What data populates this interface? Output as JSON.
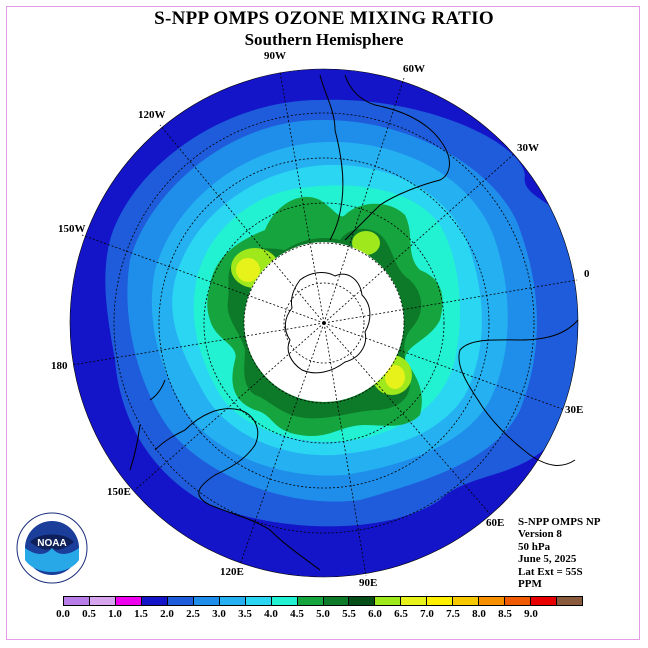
{
  "title": "S-NPP OMPS OZONE MIXING RATIO",
  "subtitle": "Southern Hemisphere",
  "longitude_labels": [
    "90W",
    "60W",
    "30W",
    "0",
    "30E",
    "60E",
    "90E",
    "120E",
    "150E",
    "180",
    "150W",
    "120W"
  ],
  "info": {
    "instrument": "S-NPP OMPS NP",
    "version": "Version 8",
    "level": "50 hPa",
    "date": "June 5, 2025",
    "lat_ext": "Lat Ext = 55S",
    "units": "PPM"
  },
  "logo_text": "NOAA",
  "colorbar": {
    "ticks": [
      "0.0",
      "0.5",
      "1.0",
      "1.5",
      "2.0",
      "2.5",
      "3.0",
      "3.5",
      "4.0",
      "4.5",
      "5.0",
      "5.5",
      "6.0",
      "6.5",
      "7.0",
      "7.5",
      "8.0",
      "8.5",
      "9.0"
    ],
    "colors": [
      "#b77ee8",
      "#d7a5ee",
      "#ee00ee",
      "#1414c8",
      "#1e5cdc",
      "#1f8eea",
      "#25b0f2",
      "#2ad6f2",
      "#22f2d2",
      "#16a43e",
      "#0c7a28",
      "#064e18",
      "#9ee81c",
      "#e6f21a",
      "#fff000",
      "#f6c800",
      "#f69000",
      "#f05a00",
      "#e80000",
      "#8a5a3c"
    ]
  }
}
